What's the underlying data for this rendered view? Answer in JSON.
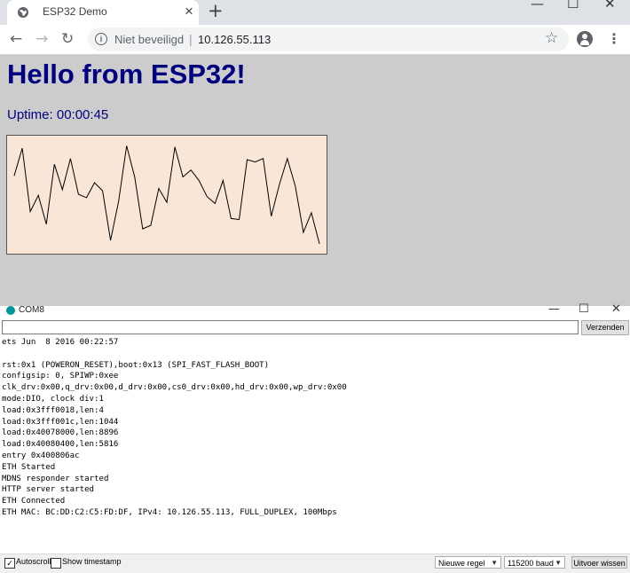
{
  "browser": {
    "tab_title": "ESP32 Demo",
    "tab_close": "×",
    "new_tab": "+",
    "window_controls": {
      "minimize": "—",
      "maximize": "☐",
      "close": "✕"
    },
    "nav": {
      "back": "←",
      "forward": "→",
      "reload": "↻"
    },
    "security_label": "Niet beveiligd",
    "separator": "|",
    "url": "10.126.55.113",
    "star": "☆",
    "menu": "⋮"
  },
  "page": {
    "heading": "Hello from ESP32!",
    "uptime_label": "Uptime:",
    "uptime_value": "00:00:45"
  },
  "chart_data": {
    "type": "line",
    "title": "",
    "xlabel": "",
    "ylabel": "",
    "grid": false,
    "background": "#fae6d6",
    "line_color": "#000000",
    "ylim": [
      0,
      100
    ],
    "y": [
      66,
      90,
      35,
      49,
      24,
      76,
      54,
      81,
      50,
      47,
      60,
      53,
      10,
      44,
      92,
      65,
      20,
      23,
      55,
      43,
      91,
      65,
      71,
      62,
      48,
      42,
      62,
      29,
      28,
      80,
      78,
      81,
      31,
      58,
      81,
      57,
      17,
      34,
      7
    ]
  },
  "serial": {
    "title": "COM8",
    "window_controls": {
      "minimize": "—",
      "maximize": "☐",
      "close": "✕"
    },
    "input_value": "",
    "send_label": "Verzenden",
    "lines": [
      "ets Jun  8 2016 00:22:57",
      "",
      "rst:0x1 (POWERON_RESET),boot:0x13 (SPI_FAST_FLASH_BOOT)",
      "configsip: 0, SPIWP:0xee",
      "clk_drv:0x00,q_drv:0x00,d_drv:0x00,cs0_drv:0x00,hd_drv:0x00,wp_drv:0x00",
      "mode:DIO, clock div:1",
      "load:0x3fff0018,len:4",
      "load:0x3fff001c,len:1044",
      "load:0x40078000,len:8896",
      "load:0x40080400,len:5816",
      "entry 0x400806ac",
      "ETH Started",
      "MDNS responder started",
      "HTTP server started",
      "ETH Connected",
      "ETH MAC: BC:DD:C2:C5:FD:DF, IPv4: 10.126.55.113, FULL_DUPLEX, 100Mbps"
    ],
    "autoscroll_label": "Autoscroll",
    "autoscroll_checked": true,
    "timestamp_label": "Show timestamp",
    "timestamp_checked": false,
    "line_ending": "Nieuwe regel",
    "baud": "115200 baud",
    "clear_label": "Uitvoer wissen"
  }
}
